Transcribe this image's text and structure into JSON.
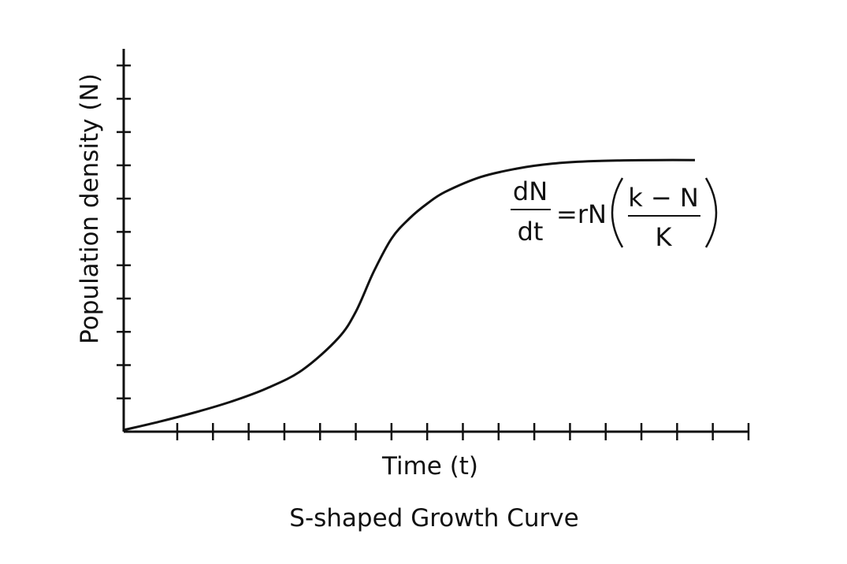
{
  "chart_data": {
    "type": "line",
    "title": "S-shaped Growth Curve",
    "xlabel": "Time (t)",
    "ylabel": "Population density (N)",
    "xlim": [
      0,
      17.5
    ],
    "ylim": [
      0,
      11.5
    ],
    "grid": false,
    "legend": "none",
    "x_ticks": [
      1.5,
      2.5,
      3.5,
      4.5,
      5.5,
      6.5,
      7.5,
      8.5,
      9.5,
      10.5,
      11.5,
      12.5,
      13.5,
      14.5,
      15.5,
      16.5,
      17.5
    ],
    "y_ticks": [
      1,
      2,
      3,
      4,
      5,
      6,
      7,
      8,
      9,
      10,
      11
    ],
    "series": [
      {
        "name": "",
        "color": "#111111",
        "x": [
          0,
          1,
          2,
          3,
          4,
          5,
          6,
          6.5,
          7,
          7.5,
          8,
          8.5,
          9,
          10,
          11,
          12,
          13,
          14,
          15,
          16
        ],
        "y": [
          0.05,
          0.3,
          0.58,
          0.9,
          1.3,
          1.85,
          2.8,
          3.6,
          4.8,
          5.8,
          6.4,
          6.85,
          7.2,
          7.65,
          7.9,
          8.05,
          8.12,
          8.15,
          8.16,
          8.16
        ]
      }
    ],
    "annotations": {
      "eq_lhs_num": "dN",
      "eq_lhs_den": "dt",
      "eq_mid": "=rN",
      "eq_frac_num": "k − N",
      "eq_frac_den": "K"
    }
  }
}
